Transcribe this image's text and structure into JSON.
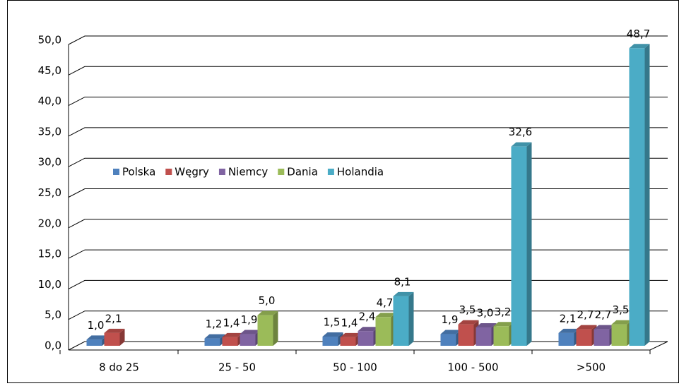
{
  "chart_data": {
    "type": "bar3d",
    "categories": [
      "8 do 25",
      "25 - 50",
      "50 - 100",
      "100 - 500",
      ">500"
    ],
    "series": [
      {
        "name": "Polska",
        "color": "#4f81bd",
        "values": [
          1.0,
          1.2,
          1.5,
          1.9,
          2.1
        ],
        "value_labels": [
          "1,0",
          "1,2",
          "1,5",
          "1,9",
          "2,1"
        ]
      },
      {
        "name": "Węgry",
        "color": "#c0504d",
        "values": [
          2.1,
          1.4,
          1.4,
          3.5,
          2.7
        ],
        "value_labels": [
          "2,1",
          "1,4",
          "1,4",
          "3,5",
          "2,7"
        ]
      },
      {
        "name": "Niemcy",
        "color": "#8064a2",
        "values": [
          null,
          1.9,
          2.4,
          3.0,
          2.7
        ],
        "value_labels": [
          null,
          "1,9",
          "2,4",
          "3,0",
          "2,7"
        ]
      },
      {
        "name": "Dania",
        "color": "#9bbb59",
        "values": [
          null,
          5.0,
          4.7,
          3.2,
          3.5
        ],
        "value_labels": [
          null,
          "5,0",
          "4,7",
          "3,2",
          "3,5"
        ]
      },
      {
        "name": "Holandia",
        "color": "#4bacc6",
        "values": [
          null,
          null,
          8.1,
          32.6,
          48.7
        ],
        "value_labels": [
          null,
          null,
          "8,1",
          "32,6",
          "48,7"
        ]
      }
    ],
    "ylim": [
      0,
      50
    ],
    "yticks": [
      {
        "value": 0,
        "label": "0,0"
      },
      {
        "value": 5,
        "label": "5,0"
      },
      {
        "value": 10,
        "label": "10,0"
      },
      {
        "value": 15,
        "label": "15,0"
      },
      {
        "value": 20,
        "label": "20,0"
      },
      {
        "value": 25,
        "label": "25,0"
      },
      {
        "value": 30,
        "label": "30,0"
      },
      {
        "value": 35,
        "label": "35,0"
      },
      {
        "value": 40,
        "label": "40,0"
      },
      {
        "value": 45,
        "label": "45,0"
      },
      {
        "value": 50,
        "label": "50,0"
      }
    ],
    "grid": true,
    "legend": "inside-left"
  }
}
